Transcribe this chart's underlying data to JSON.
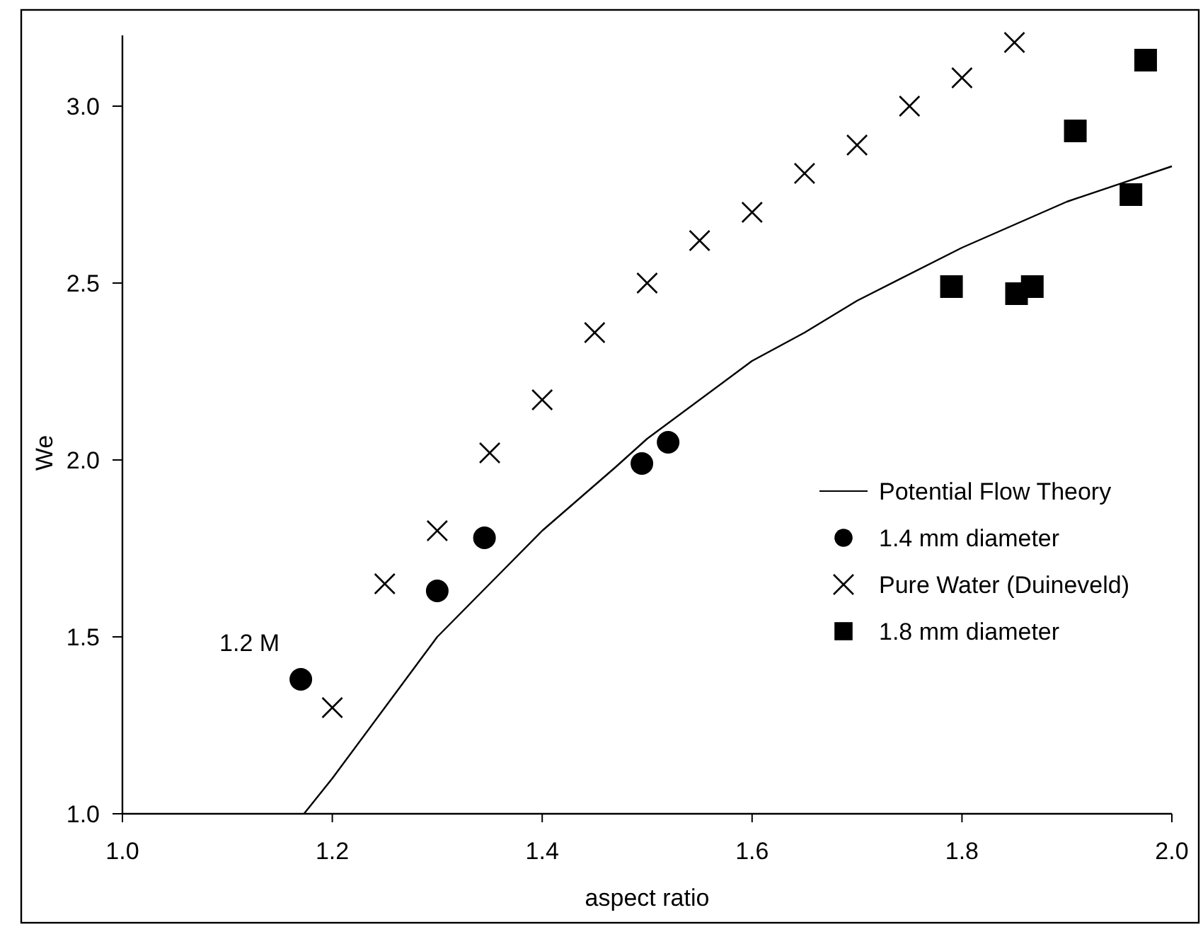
{
  "chart_data": {
    "type": "scatter",
    "xlabel": "aspect ratio",
    "ylabel": "We",
    "xlim": [
      1.0,
      2.0
    ],
    "xticks": [
      {
        "value": 1.0,
        "label": "1.0"
      },
      1.2,
      1.4,
      1.6,
      1.8,
      {
        "value": 2.0,
        "label": "2.0"
      }
    ],
    "ylim": [
      1.0,
      3.2
    ],
    "yticks": [
      {
        "value": 1.0,
        "label": "1.0"
      },
      1.5,
      {
        "value": 2.0,
        "label": "2.0"
      },
      2.5,
      {
        "value": 3.0,
        "label": "3.0"
      }
    ],
    "grid": false,
    "legend": "right",
    "annotations": [
      {
        "text": "1.2 M",
        "x": 1.17,
        "y": 1.38
      }
    ],
    "series": [
      {
        "name": "Potential Flow Theory",
        "type": "line",
        "color": "#000000",
        "marker": "none",
        "line_style": "solid",
        "x": [
          1.173,
          1.2,
          1.25,
          1.3,
          1.36,
          1.4,
          1.47,
          1.5,
          1.6,
          1.65,
          1.7,
          1.8,
          1.9,
          2.0
        ],
        "values": [
          1.0,
          1.1,
          1.3,
          1.5,
          1.68,
          1.8,
          1.98,
          2.06,
          2.28,
          2.36,
          2.45,
          2.6,
          2.73,
          2.83
        ]
      },
      {
        "name": "1.4 mm diameter",
        "color": "#000000",
        "marker": "circle",
        "x": [
          1.17,
          1.3,
          1.345,
          1.495,
          1.52
        ],
        "values": [
          1.38,
          1.63,
          1.78,
          1.99,
          2.05
        ]
      },
      {
        "name": "Pure Water (Duineveld)",
        "color": "#000000",
        "marker": "cross",
        "x": [
          1.2,
          1.25,
          1.3,
          1.35,
          1.4,
          1.45,
          1.5,
          1.55,
          1.6,
          1.65,
          1.7,
          1.75,
          1.8,
          1.85
        ],
        "values": [
          1.3,
          1.65,
          1.8,
          2.02,
          2.17,
          2.36,
          2.5,
          2.62,
          2.7,
          2.81,
          2.89,
          3.0,
          3.08,
          3.18
        ]
      },
      {
        "name": "1.8 mm diameter",
        "color": "#000000",
        "marker": "square",
        "x": [
          1.79,
          1.852,
          1.867,
          1.908,
          1.961,
          1.975
        ],
        "values": [
          2.49,
          2.47,
          2.49,
          2.93,
          2.75,
          3.13
        ]
      }
    ]
  }
}
